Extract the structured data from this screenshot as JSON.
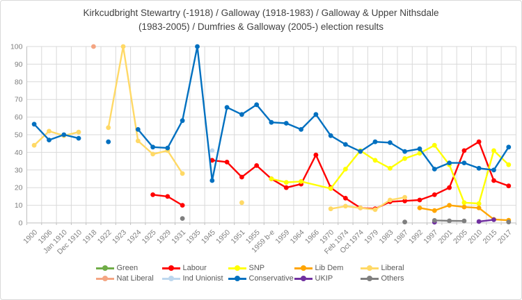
{
  "title_line1": "Kirkcudbright Stewartry (-1918) / Galloway (1918-1983) / Galloway & Upper Nithsdale",
  "title_line2": "(1983-2005) / Dumfries & Galloway (2005-) election results",
  "style": {
    "background": "#ffffff",
    "grid_color": "#d9d9d9",
    "axis_color": "#bfbfbf",
    "tick_label_color": "#7f7f7f",
    "legend_text_color": "#595959",
    "title_color": "#404040"
  },
  "chart_data": {
    "type": "line",
    "title": "Kirkcudbright Stewartry (-1918) / Galloway (1918-1983) / Galloway & Upper Nithsdale (1983-2005) / Dumfries & Galloway (2005-) election results",
    "xlabel": "",
    "ylabel": "",
    "ylim": [
      0,
      100
    ],
    "y_step": 10,
    "grid": true,
    "legend_position": "bottom",
    "y_ticks": [
      0,
      10,
      20,
      30,
      40,
      50,
      60,
      70,
      80,
      90,
      100
    ],
    "categories": [
      "1900",
      "1906",
      "Jan 1910",
      "Dec 1910",
      "1918",
      "1922",
      "1923",
      "1924",
      "1925",
      "1929",
      "1931",
      "1935",
      "1945",
      "1950",
      "1951",
      "1955",
      "1959 b-e",
      "1959",
      "1964",
      "1966",
      "1970",
      "Feb 1974",
      "Oct 1974",
      "1979",
      "1983",
      "1987",
      "1992",
      "1997",
      "2001",
      "2005",
      "2010",
      "2015",
      "2017"
    ],
    "series": [
      {
        "name": "Green",
        "color": "#70ad47",
        "segments": []
      },
      {
        "name": "Labour",
        "color": "#ff0000",
        "segments": [
          [
            [
              "1925",
              16
            ],
            [
              "1929",
              15
            ],
            [
              "1931",
              10
            ]
          ],
          [
            [
              "1945",
              35.5
            ],
            [
              "1950",
              34.5
            ],
            [
              "1951",
              26
            ],
            [
              "1955",
              32.5
            ],
            [
              "1959 b-e",
              25
            ],
            [
              "1959",
              20
            ],
            [
              "1964",
              22
            ],
            [
              "1966",
              38.5
            ],
            [
              "1970",
              20
            ],
            [
              "Feb 1974",
              14
            ],
            [
              "Oct 1974",
              8.5
            ],
            [
              "1979",
              8
            ],
            [
              "1983",
              12
            ],
            [
              "1987",
              12.5
            ],
            [
              "1992",
              13
            ],
            [
              "1997",
              16
            ],
            [
              "2001",
              20
            ],
            [
              "2005",
              41
            ],
            [
              "2010",
              46
            ],
            [
              "2015",
              24
            ],
            [
              "2017",
              21
            ]
          ]
        ]
      },
      {
        "name": "SNP",
        "color": "#ffff00",
        "segments": [
          [
            [
              "1959 b-e",
              25
            ],
            [
              "1959",
              23
            ],
            [
              "1964",
              23.5
            ],
            [
              "1970",
              19.5
            ],
            [
              "Feb 1974",
              30.5
            ],
            [
              "Oct 1974",
              41
            ],
            [
              "1979",
              35.5
            ],
            [
              "1983",
              31
            ],
            [
              "1987",
              36.5
            ],
            [
              "1992",
              39.5
            ],
            [
              "1997",
              44
            ],
            [
              "2001",
              33
            ],
            [
              "2005",
              11.5
            ],
            [
              "2010",
              11
            ],
            [
              "2015",
              41
            ],
            [
              "2017",
              33
            ]
          ]
        ]
      },
      {
        "name": "Lib Dem",
        "color": "#ffa500",
        "segments": [
          [
            [
              "1992",
              8.5
            ],
            [
              "1997",
              7
            ],
            [
              "2001",
              10
            ],
            [
              "2005",
              9
            ],
            [
              "2010",
              8.5
            ],
            [
              "2015",
              2
            ],
            [
              "2017",
              1.5
            ]
          ]
        ]
      },
      {
        "name": "Liberal",
        "color": "#ffd966",
        "segments": [
          [
            [
              "1900",
              44
            ],
            [
              "1906",
              52
            ],
            [
              "Jan 1910",
              49.5
            ],
            [
              "Dec 1910",
              51.5
            ]
          ],
          [
            [
              "1922",
              54
            ],
            [
              "1923",
              100
            ],
            [
              "1924",
              46.5
            ],
            [
              "1925",
              39
            ],
            [
              "1929",
              41
            ],
            [
              "1931",
              28
            ]
          ],
          [
            [
              "1951",
              11.5
            ]
          ],
          [
            [
              "1970",
              8
            ],
            [
              "Feb 1974",
              9.5
            ],
            [
              "Oct 1974",
              8.5
            ],
            [
              "1979",
              7.5
            ],
            [
              "1983",
              13
            ],
            [
              "1987",
              14.5
            ]
          ]
        ]
      },
      {
        "name": "Nat Liberal",
        "color": "#f4a582",
        "segments": [
          [
            [
              "1918",
              100
            ]
          ]
        ]
      },
      {
        "name": "Ind Unionist",
        "color": "#bdd7ee",
        "segments": [
          [
            [
              "1945",
              41
            ]
          ]
        ]
      },
      {
        "name": "Conservative",
        "color": "#0070c0",
        "segments": [
          [
            [
              "1900",
              56
            ],
            [
              "1906",
              47
            ],
            [
              "Jan 1910",
              50
            ],
            [
              "Dec 1910",
              48
            ]
          ],
          [
            [
              "1922",
              46
            ]
          ],
          [
            [
              "1924",
              53
            ],
            [
              "1925",
              43
            ],
            [
              "1929",
              42.5
            ],
            [
              "1931",
              58
            ],
            [
              "1935",
              100
            ],
            [
              "1945",
              24
            ],
            [
              "1950",
              65.5
            ],
            [
              "1951",
              61.5
            ],
            [
              "1955",
              67
            ],
            [
              "1959 b-e",
              57
            ],
            [
              "1959",
              56.5
            ],
            [
              "1964",
              53
            ],
            [
              "1966",
              61.5
            ],
            [
              "1970",
              49.5
            ],
            [
              "Feb 1974",
              44.5
            ],
            [
              "Oct 1974",
              40.5
            ],
            [
              "1979",
              46
            ],
            [
              "1983",
              45.5
            ],
            [
              "1987",
              40.5
            ],
            [
              "1992",
              42
            ],
            [
              "1997",
              30.5
            ],
            [
              "2001",
              34
            ],
            [
              "2005",
              34
            ],
            [
              "2010",
              31
            ],
            [
              "2015",
              30
            ],
            [
              "2017",
              43
            ]
          ]
        ]
      },
      {
        "name": "UKIP",
        "color": "#7030a0",
        "segments": [
          [
            [
              "1997",
              0.4
            ]
          ],
          [
            [
              "2010",
              0.8
            ],
            [
              "2015",
              1.8
            ]
          ]
        ]
      },
      {
        "name": "Others",
        "color": "#7f7f7f",
        "segments": [
          [
            [
              "1931",
              2.5
            ]
          ],
          [
            [
              "1987",
              0.5
            ]
          ],
          [
            [
              "1997",
              1.4
            ],
            [
              "2001",
              1.2
            ],
            [
              "2005",
              1.1
            ]
          ],
          [
            [
              "2017",
              0.5
            ]
          ]
        ]
      }
    ]
  }
}
